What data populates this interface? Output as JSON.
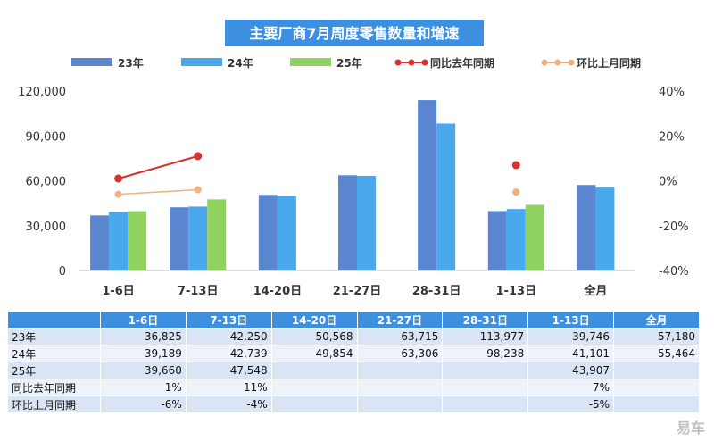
{
  "chart_data": {
    "type": "bar",
    "title": "主要厂商7月周度零售数量和增速",
    "categories": [
      "1-6日",
      "7-13日",
      "14-20日",
      "21-27日",
      "28-31日",
      "1-13日",
      "全月"
    ],
    "series": [
      {
        "name": "23年",
        "values": [
          36825,
          42250,
          50568,
          63715,
          113977,
          39746,
          57180
        ],
        "color": "#5b86d0"
      },
      {
        "name": "24年",
        "values": [
          39189,
          42739,
          49854,
          63306,
          98238,
          41101,
          55464
        ],
        "color": "#4aa8ec"
      },
      {
        "name": "25年",
        "values": [
          39660,
          47548,
          null,
          null,
          null,
          43907,
          null
        ],
        "color": "#8fd260"
      }
    ],
    "lines": [
      {
        "name": "同比去年同期",
        "values": [
          1,
          11,
          null,
          null,
          null,
          7,
          null
        ],
        "color": "#d93030"
      },
      {
        "name": "环比上月同期",
        "values": [
          -6,
          -4,
          null,
          null,
          null,
          -5,
          null
        ],
        "color": "#f0b080"
      }
    ],
    "y_left": {
      "min": 0,
      "max": 120000,
      "ticks": [
        0,
        30000,
        60000,
        90000,
        120000
      ],
      "tick_labels": [
        "0",
        "30,000",
        "60,000",
        "90,000",
        "120,000"
      ]
    },
    "y_right": {
      "min": -40,
      "max": 40,
      "ticks": [
        -40,
        -20,
        0,
        20,
        40
      ],
      "tick_labels": [
        "-40%",
        "-20%",
        "0%",
        "20%",
        "40%"
      ]
    },
    "legend_position": "top",
    "grid": false
  },
  "table": {
    "header": [
      "1-6日",
      "7-13日",
      "14-20日",
      "21-27日",
      "28-31日",
      "1-13日",
      "全月"
    ],
    "rows": [
      {
        "label": "23年",
        "cells": [
          "36,825",
          "42,250",
          "50,568",
          "63,715",
          "113,977",
          "39,746",
          "57,180"
        ]
      },
      {
        "label": "24年",
        "cells": [
          "39,189",
          "42,739",
          "49,854",
          "63,306",
          "98,238",
          "41,101",
          "55,464"
        ]
      },
      {
        "label": "25年",
        "cells": [
          "39,660",
          "47,548",
          "",
          "",
          "",
          "43,907",
          ""
        ]
      },
      {
        "label": "同比去年同期",
        "cells": [
          "1%",
          "11%",
          "",
          "",
          "",
          "7%",
          ""
        ]
      },
      {
        "label": "环比上月同期",
        "cells": [
          "-6%",
          "-4%",
          "",
          "",
          "",
          "-5%",
          ""
        ]
      }
    ]
  },
  "watermark": "易车"
}
